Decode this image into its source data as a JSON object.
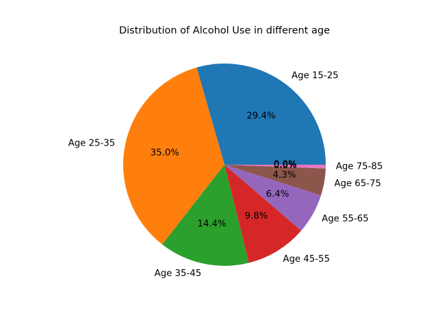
{
  "chart_data": {
    "type": "pie",
    "title": "Distribution of Alcohol Use in different age",
    "categories": [
      "Age 15-25",
      "Age 25-35",
      "Age 35-45",
      "Age 45-55",
      "Age 55-65",
      "Age 65-75",
      "Age 75-85",
      "",
      ""
    ],
    "values": [
      29.4,
      35.0,
      14.4,
      9.8,
      6.4,
      4.3,
      0.6,
      0.0,
      0.0
    ],
    "percent_labels": [
      "29.4%",
      "35.0%",
      "14.4%",
      "9.8%",
      "6.4%",
      "4.3%",
      "0.6%",
      "0.0%",
      "0.0%"
    ],
    "colors": [
      "#1f77b4",
      "#ff7f0e",
      "#2ca02c",
      "#d62728",
      "#9467bd",
      "#8c564b",
      "#e377c2",
      "#7f7f7f",
      "#bcbd22"
    ],
    "start_angle": 0,
    "direction": "counterclockwise",
    "legend": "none"
  }
}
